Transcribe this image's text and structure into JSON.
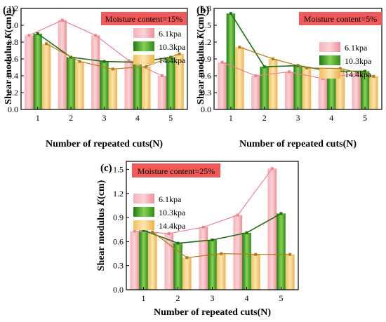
{
  "colors": {
    "pink": "#f4a2a8",
    "green": "#3da020",
    "gold": "#f2c36a",
    "pink_line": "#f08090",
    "green_line": "#1e6e12",
    "gold_line": "#b07a18",
    "moisture_box": "#f05a5a"
  },
  "legend_series": [
    "6.1kpa",
    "10.3kpa",
    "14.4kpa"
  ],
  "chart_data": [
    {
      "panel_label": "(a)",
      "type": "bar",
      "moisture_label": "Moisture content=15%",
      "xlabel": "Number of repeated cuts(N)",
      "ylabel_prefix": "Shear modulus ",
      "ylabel_var": "K",
      "ylabel_suffix": "(cm)",
      "categories": [
        "1",
        "2",
        "3",
        "4",
        "5"
      ],
      "yticks": [
        "0.0",
        "0.2",
        "0.4",
        "0.6",
        "0.8",
        "1.0",
        "1.2"
      ],
      "ylim": [
        0,
        1.2
      ],
      "legend_position": "upper right",
      "series": [
        {
          "name": "6.1kpa",
          "values": [
            0.88,
            1.06,
            0.88,
            0.58,
            0.4
          ]
        },
        {
          "name": "10.3kpa",
          "values": [
            0.9,
            0.62,
            0.57,
            0.56,
            0.62
          ]
        },
        {
          "name": "14.4kpa",
          "values": [
            0.78,
            0.57,
            0.48,
            0.51,
            0.66
          ]
        }
      ]
    },
    {
      "panel_label": "(b)",
      "type": "bar",
      "moisture_label": "Moisture content=5%",
      "xlabel": "Number of repeated cuts(N)",
      "ylabel_prefix": "Shear modulus ",
      "ylabel_var": "K",
      "ylabel_suffix": "(cm)",
      "categories": [
        "1",
        "2",
        "3",
        "4",
        "5"
      ],
      "yticks": [
        "0.0",
        "0.3",
        "0.6",
        "0.9",
        "1.2",
        "1.5",
        "1.8"
      ],
      "ylim": [
        0,
        1.8
      ],
      "legend_position": "right",
      "series": [
        {
          "name": "6.1kpa",
          "values": [
            0.84,
            0.6,
            0.67,
            0.55,
            0.64
          ]
        },
        {
          "name": "10.3kpa",
          "values": [
            1.71,
            0.76,
            0.78,
            0.68,
            0.68
          ]
        },
        {
          "name": "14.4kpa",
          "values": [
            1.11,
            0.9,
            0.74,
            0.73,
            0.59
          ]
        }
      ]
    },
    {
      "panel_label": "(c)",
      "type": "bar",
      "moisture_label": "Moisture content=25%",
      "xlabel": "Number of repeated cuts(N)",
      "ylabel_prefix": "Shear modulus ",
      "ylabel_var": "K",
      "ylabel_suffix": "(cm)",
      "categories": [
        "1",
        "2",
        "3",
        "4",
        "5"
      ],
      "yticks": [
        "0.0",
        "0.3",
        "0.6",
        "0.9",
        "1.2",
        "1.5"
      ],
      "ylim": [
        0,
        1.6
      ],
      "legend_position": "upper left",
      "series": [
        {
          "name": "6.1kpa",
          "values": [
            0.73,
            0.7,
            0.78,
            0.93,
            1.51
          ]
        },
        {
          "name": "10.3kpa",
          "values": [
            0.74,
            0.58,
            0.62,
            0.71,
            0.95
          ]
        },
        {
          "name": "14.4kpa",
          "values": [
            0.72,
            0.4,
            0.45,
            0.44,
            0.44
          ]
        }
      ]
    }
  ]
}
